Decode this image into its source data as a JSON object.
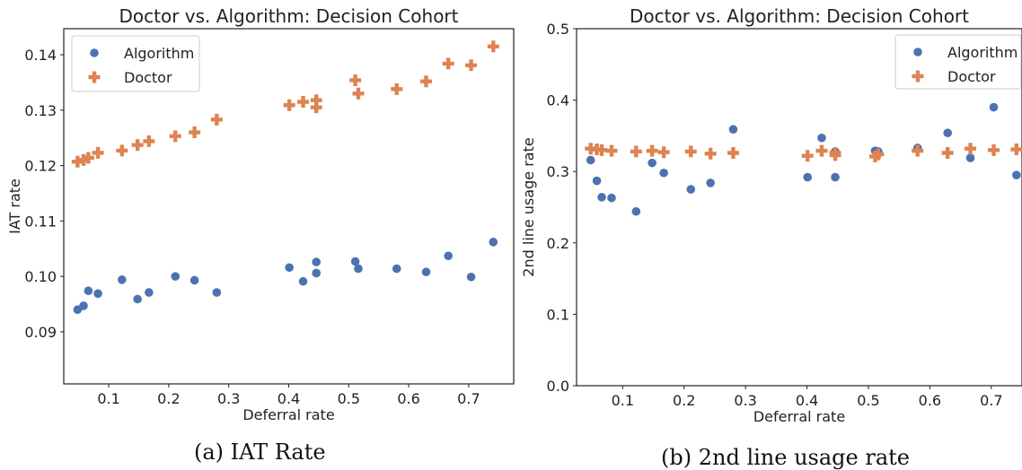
{
  "colors": {
    "algorithm": "#4c72b0",
    "doctor": "#dd8452"
  },
  "chart_data": [
    {
      "type": "scatter",
      "title": "Doctor vs. Algorithm: Decision Cohort",
      "xlabel": "Deferral rate",
      "ylabel": "IAT rate",
      "xlim": [
        0.025,
        0.775
      ],
      "ylim": [
        0.0806,
        0.1447
      ],
      "xticks": [
        0.1,
        0.2,
        0.3,
        0.4,
        0.5,
        0.6,
        0.7
      ],
      "xtick_labels": [
        "0.1",
        "0.2",
        "0.3",
        "0.4",
        "0.5",
        "0.6",
        "0.7"
      ],
      "yticks": [
        0.09,
        0.1,
        0.11,
        0.12,
        0.13,
        0.14
      ],
      "ytick_labels": [
        "0.09",
        "0.10",
        "0.11",
        "0.12",
        "0.13",
        "0.14"
      ],
      "grid": false,
      "legend": "top-left",
      "series": [
        {
          "name": "Algorithm",
          "marker": "circle",
          "x": [
            0.048,
            0.058,
            0.066,
            0.082,
            0.122,
            0.148,
            0.167,
            0.211,
            0.243,
            0.28,
            0.401,
            0.424,
            0.446,
            0.446,
            0.511,
            0.516,
            0.58,
            0.629,
            0.666,
            0.704,
            0.741
          ],
          "y": [
            0.094,
            0.0947,
            0.0974,
            0.0969,
            0.0994,
            0.0959,
            0.0971,
            0.1,
            0.0993,
            0.0971,
            0.1016,
            0.0991,
            0.1026,
            0.1006,
            0.1027,
            0.1014,
            0.1014,
            0.1008,
            0.1037,
            0.0999,
            0.1062
          ]
        },
        {
          "name": "Doctor",
          "marker": "plus",
          "x": [
            0.048,
            0.058,
            0.066,
            0.082,
            0.122,
            0.148,
            0.167,
            0.211,
            0.243,
            0.28,
            0.401,
            0.424,
            0.446,
            0.446,
            0.511,
            0.516,
            0.58,
            0.629,
            0.666,
            0.704,
            0.741
          ],
          "y": [
            0.1207,
            0.121,
            0.1214,
            0.1223,
            0.1227,
            0.1237,
            0.1244,
            0.1253,
            0.126,
            0.1283,
            0.1309,
            0.1315,
            0.1318,
            0.1305,
            0.1354,
            0.133,
            0.1338,
            0.1352,
            0.1384,
            0.1381,
            0.1415
          ]
        }
      ]
    },
    {
      "type": "scatter",
      "title": "Doctor vs. Algorithm: Decision Cohort",
      "xlabel": "Deferral rate",
      "ylabel": "2nd line usage rate",
      "xlim": [
        0.025,
        0.75
      ],
      "ylim": [
        0.0,
        0.5
      ],
      "xticks": [
        0.1,
        0.2,
        0.3,
        0.4,
        0.5,
        0.6,
        0.7
      ],
      "xtick_labels": [
        "0.1",
        "0.2",
        "0.3",
        "0.4",
        "0.5",
        "0.6",
        "0.7"
      ],
      "yticks": [
        0.0,
        0.1,
        0.2,
        0.3,
        0.4,
        0.5
      ],
      "ytick_labels": [
        "0.0",
        "0.1",
        "0.2",
        "0.3",
        "0.4",
        "0.5"
      ],
      "grid": false,
      "legend": "top-right",
      "series": [
        {
          "name": "Algorithm",
          "marker": "circle",
          "x": [
            0.048,
            0.058,
            0.066,
            0.082,
            0.122,
            0.148,
            0.167,
            0.211,
            0.243,
            0.28,
            0.401,
            0.424,
            0.446,
            0.446,
            0.511,
            0.516,
            0.58,
            0.629,
            0.666,
            0.704,
            0.741
          ],
          "y": [
            0.316,
            0.287,
            0.264,
            0.263,
            0.244,
            0.312,
            0.298,
            0.275,
            0.284,
            0.359,
            0.292,
            0.347,
            0.292,
            0.328,
            0.329,
            0.328,
            0.333,
            0.354,
            0.319,
            0.39,
            0.295
          ]
        },
        {
          "name": "Doctor",
          "marker": "plus",
          "x": [
            0.048,
            0.058,
            0.066,
            0.082,
            0.122,
            0.148,
            0.167,
            0.211,
            0.243,
            0.28,
            0.401,
            0.424,
            0.446,
            0.446,
            0.511,
            0.516,
            0.58,
            0.629,
            0.666,
            0.704,
            0.741
          ],
          "y": [
            0.332,
            0.331,
            0.33,
            0.329,
            0.328,
            0.329,
            0.327,
            0.328,
            0.325,
            0.326,
            0.322,
            0.329,
            0.323,
            0.326,
            0.321,
            0.324,
            0.329,
            0.326,
            0.332,
            0.33,
            0.331
          ]
        }
      ]
    }
  ],
  "captions": [
    "(a) IAT Rate",
    "(b) 2nd line usage rate"
  ]
}
